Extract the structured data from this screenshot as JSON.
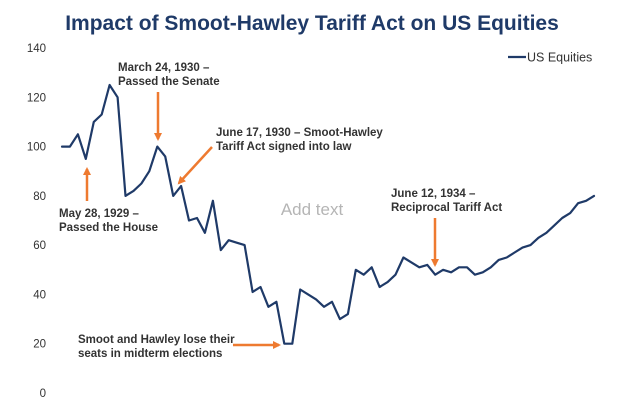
{
  "chart_data": {
    "type": "line",
    "title": "Impact of Smoot-Hawley Tariff Act on US Equities",
    "xlabel": "",
    "ylabel": "",
    "ylim": [
      0,
      140
    ],
    "yticks": [
      0,
      20,
      40,
      60,
      80,
      100,
      120,
      140
    ],
    "grid": false,
    "legend_position": "top-right",
    "series": [
      {
        "name": "US Equities",
        "color": "#1f3a68",
        "values": [
          100,
          100,
          105,
          95,
          110,
          113,
          125,
          120,
          80,
          82,
          85,
          90,
          100,
          96,
          80,
          84,
          70,
          71,
          65,
          78,
          58,
          62,
          61,
          60,
          41,
          43,
          35,
          37,
          20,
          20,
          42,
          40,
          38,
          35,
          37,
          30,
          32,
          50,
          48,
          51,
          43,
          45,
          48,
          55,
          53,
          51,
          52,
          48,
          50,
          49,
          51,
          51,
          48,
          49,
          51,
          54,
          55,
          57,
          59,
          60,
          63,
          65,
          68,
          71,
          73,
          77,
          78,
          80
        ]
      }
    ]
  },
  "annotations": {
    "placeholder": "Add text",
    "senate": {
      "lines": [
        "March 24, 1930 –",
        "Passed the Senate"
      ]
    },
    "signed": {
      "lines": [
        "June 17, 1930 – Smoot-Hawley",
        "Tariff Act signed into law"
      ]
    },
    "house": {
      "lines": [
        "May 28, 1929 –",
        "Passed the House"
      ]
    },
    "reciprocal": {
      "lines": [
        "June 12, 1934 –",
        "Reciprocal Tariff Act"
      ]
    },
    "midterm": {
      "lines": [
        "Smoot and Hawley lose their",
        "seats in midterm elections"
      ]
    }
  },
  "colors": {
    "line": "#1f3a68",
    "arrow": "#ee7a30",
    "title": "#1f3a68"
  }
}
